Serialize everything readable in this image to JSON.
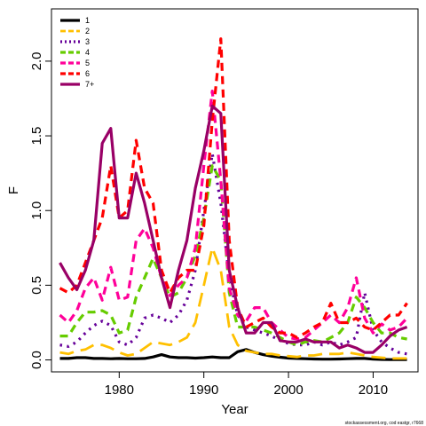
{
  "chart_data": {
    "type": "line",
    "xlabel": "Year",
    "ylabel": "F",
    "xlim": [
      1972,
      2015.3
    ],
    "ylim": [
      -0.08,
      2.35
    ],
    "x_ticks": [
      1980,
      1990,
      2000,
      2010
    ],
    "y_ticks": [
      0.0,
      0.5,
      1.0,
      1.5,
      2.0
    ],
    "y_tick_labels": [
      "0.0",
      "0.5",
      "1.0",
      "1.5",
      "2.0"
    ],
    "grid": false,
    "legend_position": "top-left",
    "footnote": "stockassessment.org, cod eastgr, r7668",
    "x": [
      1973,
      1974,
      1975,
      1976,
      1977,
      1978,
      1979,
      1980,
      1981,
      1982,
      1983,
      1984,
      1985,
      1986,
      1987,
      1988,
      1989,
      1990,
      1991,
      1992,
      1993,
      1994,
      1995,
      1996,
      1997,
      1998,
      1999,
      2000,
      2001,
      2002,
      2003,
      2004,
      2005,
      2006,
      2007,
      2008,
      2009,
      2010,
      2011,
      2012,
      2013,
      2014
    ],
    "series": [
      {
        "name": "1",
        "color": "#000000",
        "dash": "solid",
        "width": 3.2,
        "values": [
          0.01,
          0.01,
          0.015,
          0.015,
          0.01,
          0.01,
          0.008,
          0.01,
          0.008,
          0.008,
          0.01,
          0.02,
          0.035,
          0.02,
          0.015,
          0.015,
          0.012,
          0.015,
          0.02,
          0.015,
          0.015,
          0.055,
          0.07,
          0.05,
          0.035,
          0.025,
          0.018,
          0.012,
          0.01,
          0.008,
          0.006,
          0.005,
          0.005,
          0.006,
          0.008,
          0.01,
          0.01,
          0.005,
          0.003,
          0.002,
          0.002,
          0.002
        ]
      },
      {
        "name": "2",
        "color": "#ffc000",
        "dash": "long",
        "width": 2.8,
        "values": [
          0.05,
          0.04,
          0.06,
          0.07,
          0.1,
          0.1,
          0.08,
          0.05,
          0.03,
          0.04,
          0.08,
          0.12,
          0.11,
          0.1,
          0.12,
          0.15,
          0.25,
          0.5,
          0.75,
          0.6,
          0.22,
          0.1,
          0.06,
          0.05,
          0.04,
          0.04,
          0.03,
          0.025,
          0.02,
          0.03,
          0.03,
          0.04,
          0.04,
          0.04,
          0.05,
          0.04,
          0.03,
          0.02,
          0.015,
          0.01,
          0.01,
          0.01
        ]
      },
      {
        "name": "3",
        "color": "#660099",
        "dash": "dot",
        "width": 3.2,
        "values": [
          0.1,
          0.09,
          0.12,
          0.18,
          0.23,
          0.26,
          0.23,
          0.12,
          0.1,
          0.15,
          0.28,
          0.3,
          0.28,
          0.25,
          0.3,
          0.4,
          0.6,
          1.0,
          1.38,
          1.05,
          0.55,
          0.3,
          0.22,
          0.2,
          0.18,
          0.16,
          0.13,
          0.11,
          0.1,
          0.1,
          0.12,
          0.1,
          0.12,
          0.1,
          0.12,
          0.15,
          0.45,
          0.2,
          0.12,
          0.08,
          0.05,
          0.04
        ]
      },
      {
        "name": "4",
        "color": "#66cc00",
        "dash": "dash",
        "width": 3.2,
        "values": [
          0.16,
          0.16,
          0.25,
          0.32,
          0.32,
          0.33,
          0.3,
          0.18,
          0.2,
          0.42,
          0.55,
          0.68,
          0.55,
          0.42,
          0.45,
          0.55,
          0.7,
          0.95,
          1.3,
          1.2,
          0.45,
          0.22,
          0.22,
          0.22,
          0.2,
          0.18,
          0.15,
          0.12,
          0.1,
          0.12,
          0.13,
          0.12,
          0.15,
          0.18,
          0.25,
          0.42,
          0.35,
          0.25,
          0.18,
          0.18,
          0.15,
          0.14
        ]
      },
      {
        "name": "5",
        "color": "#ff0099",
        "dash": "dash",
        "width": 3.2,
        "values": [
          0.3,
          0.25,
          0.33,
          0.48,
          0.55,
          0.4,
          0.62,
          0.4,
          0.42,
          0.8,
          0.88,
          0.75,
          0.55,
          0.43,
          0.5,
          0.55,
          0.75,
          1.3,
          1.8,
          1.2,
          0.48,
          0.3,
          0.26,
          0.35,
          0.35,
          0.25,
          0.2,
          0.15,
          0.14,
          0.15,
          0.2,
          0.25,
          0.3,
          0.25,
          0.35,
          0.55,
          0.28,
          0.18,
          0.24,
          0.2,
          0.22,
          0.28
        ]
      },
      {
        "name": "6",
        "color": "#ff0000",
        "dash": "dash",
        "width": 3.2,
        "values": [
          0.48,
          0.45,
          0.5,
          0.65,
          0.8,
          0.95,
          1.3,
          0.95,
          1.0,
          1.47,
          1.15,
          1.05,
          0.6,
          0.45,
          0.55,
          0.6,
          0.6,
          0.9,
          1.6,
          2.15,
          0.8,
          0.35,
          0.22,
          0.25,
          0.28,
          0.22,
          0.18,
          0.18,
          0.15,
          0.18,
          0.22,
          0.25,
          0.38,
          0.25,
          0.25,
          0.28,
          0.22,
          0.2,
          0.25,
          0.3,
          0.3,
          0.38
        ]
      },
      {
        "name": "7+",
        "color": "#990066",
        "dash": "solid",
        "width": 3.2,
        "values": [
          0.65,
          0.55,
          0.47,
          0.6,
          0.8,
          1.45,
          1.55,
          0.95,
          0.95,
          1.25,
          1.05,
          0.8,
          0.55,
          0.35,
          0.6,
          0.8,
          1.15,
          1.4,
          1.7,
          1.65,
          0.6,
          0.35,
          0.18,
          0.18,
          0.25,
          0.25,
          0.13,
          0.12,
          0.12,
          0.14,
          0.12,
          0.12,
          0.12,
          0.08,
          0.1,
          0.08,
          0.05,
          0.05,
          0.1,
          0.16,
          0.2,
          0.22
        ]
      }
    ]
  }
}
